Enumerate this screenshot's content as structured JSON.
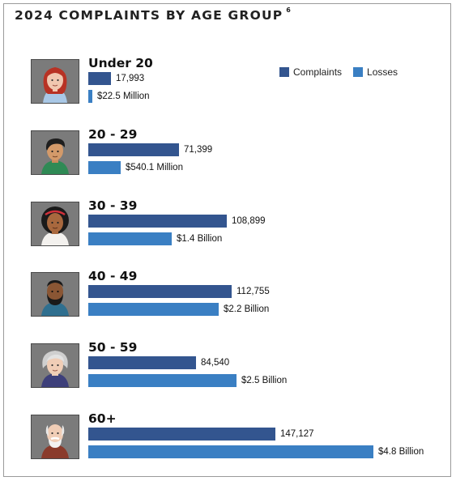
{
  "chart_data": {
    "type": "bar",
    "title": "2024 COMPLAINTS BY AGE GROUP",
    "footnote_marker": "6",
    "categories": [
      "Under 20",
      "20 - 29",
      "30 - 39",
      "40 - 49",
      "50 - 59",
      "60+"
    ],
    "series": [
      {
        "name": "Complaints",
        "color": "#33558f",
        "values": [
          17993,
          71399,
          108899,
          112755,
          84540,
          147127
        ],
        "labels": [
          "17,993",
          "71,399",
          "108,899",
          "112,755",
          "84,540",
          "147,127"
        ]
      },
      {
        "name": "Losses",
        "color": "#3a7fc3",
        "values": [
          22.5,
          540.1,
          1400,
          2200,
          2500,
          4800
        ],
        "unit": "million USD",
        "labels": [
          "$22.5 Million",
          "$540.1 Million",
          "$1.4 Billion",
          "$2.2 Billion",
          "$2.5 Billion",
          "$4.8 Billion"
        ]
      }
    ],
    "orientation": "horizontal",
    "legend_position": "top-right",
    "grid": false,
    "axes_visible": false
  },
  "avatars": [
    "young-woman-avatar-icon",
    "young-man-avatar-icon",
    "woman-avatar-icon",
    "bearded-man-avatar-icon",
    "gray-haired-woman-avatar-icon",
    "elderly-man-avatar-icon"
  ]
}
